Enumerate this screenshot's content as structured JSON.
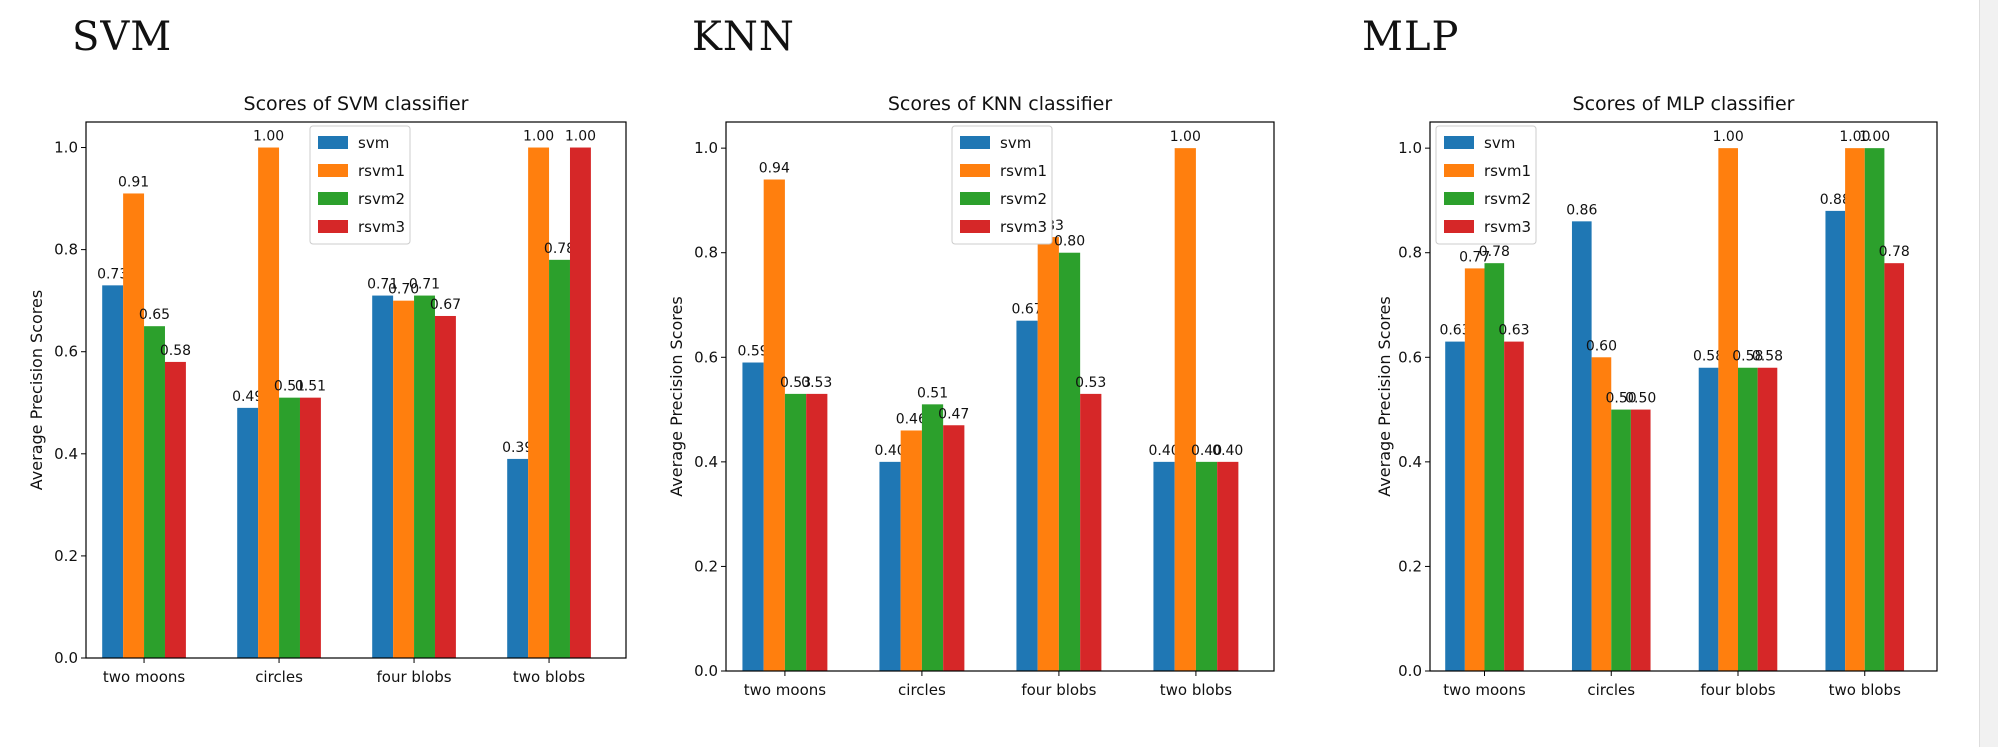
{
  "panels": [
    {
      "heading": "SVM"
    },
    {
      "heading": "KNN"
    },
    {
      "heading": "MLP"
    }
  ],
  "colors": {
    "svm": "#1f77b4",
    "rsvm1": "#ff7f0e",
    "rsvm2": "#2ca02c",
    "rsvm3": "#d62728"
  },
  "chart_data": [
    {
      "type": "bar",
      "title": "Scores of SVM classifier",
      "xlabel": "",
      "ylabel": "Average Precision Scores",
      "ylim": [
        0,
        1.05
      ],
      "yticks": [
        "0.0",
        "0.2",
        "0.4",
        "0.6",
        "0.8",
        "1.0"
      ],
      "categories": [
        "two moons",
        "circles",
        "four blobs",
        "two blobs"
      ],
      "legend": "top-center",
      "grid": false,
      "series": [
        {
          "name": "svm",
          "values": [
            0.73,
            0.49,
            0.71,
            0.39
          ],
          "labels": [
            "0.73",
            "0.49",
            "0.71",
            "0.39"
          ]
        },
        {
          "name": "rsvm1",
          "values": [
            0.91,
            1.0,
            0.7,
            1.0
          ],
          "labels": [
            "0.91",
            "1.00",
            "0.70",
            "1.00"
          ]
        },
        {
          "name": "rsvm2",
          "values": [
            0.65,
            0.51,
            0.71,
            0.78
          ],
          "labels": [
            "0.65",
            "0.51",
            "0.71",
            "0.78"
          ]
        },
        {
          "name": "rsvm3",
          "values": [
            0.58,
            0.51,
            0.67,
            1.0
          ],
          "labels": [
            "0.58",
            "0.51",
            "0.67",
            "1.00"
          ]
        }
      ]
    },
    {
      "type": "bar",
      "title": "Scores of KNN classifier",
      "xlabel": "",
      "ylabel": "Average Precision Scores",
      "ylim": [
        0,
        1.05
      ],
      "yticks": [
        "0.0",
        "0.2",
        "0.4",
        "0.6",
        "0.8",
        "1.0"
      ],
      "categories": [
        "two moons",
        "circles",
        "four blobs",
        "two blobs"
      ],
      "legend": "top-center",
      "grid": false,
      "series": [
        {
          "name": "svm",
          "values": [
            0.59,
            0.4,
            0.67,
            0.4
          ],
          "labels": [
            "0.59",
            "0.40",
            "0.67",
            "0.40"
          ]
        },
        {
          "name": "rsvm1",
          "values": [
            0.94,
            0.46,
            0.83,
            1.0
          ],
          "labels": [
            "0.94",
            "0.46",
            "0.83",
            "1.00"
          ]
        },
        {
          "name": "rsvm2",
          "values": [
            0.53,
            0.51,
            0.8,
            0.4
          ],
          "labels": [
            "0.53",
            "0.51",
            "0.80",
            "0.40"
          ]
        },
        {
          "name": "rsvm3",
          "values": [
            0.53,
            0.47,
            0.53,
            0.4
          ],
          "labels": [
            "0.53",
            "0.47",
            "0.53",
            "0.40"
          ]
        }
      ]
    },
    {
      "type": "bar",
      "title": "Scores of MLP classifier",
      "xlabel": "",
      "ylabel": "Average Precision Scores",
      "ylim": [
        0,
        1.05
      ],
      "yticks": [
        "0.0",
        "0.2",
        "0.4",
        "0.6",
        "0.8",
        "1.0"
      ],
      "categories": [
        "two moons",
        "circles",
        "four blobs",
        "two blobs"
      ],
      "legend": "top-left",
      "grid": false,
      "series": [
        {
          "name": "svm",
          "values": [
            0.63,
            0.86,
            0.58,
            0.88
          ],
          "labels": [
            "0.63",
            "0.86",
            "0.58",
            "0.88"
          ]
        },
        {
          "name": "rsvm1",
          "values": [
            0.77,
            0.6,
            1.0,
            1.0
          ],
          "labels": [
            "0.77",
            "0.60",
            "1.00",
            "1.00"
          ]
        },
        {
          "name": "rsvm2",
          "values": [
            0.78,
            0.5,
            0.58,
            1.0
          ],
          "labels": [
            "0.78",
            "0.50",
            "0.58",
            "1.00"
          ]
        },
        {
          "name": "rsvm3",
          "values": [
            0.63,
            0.5,
            0.58,
            0.78
          ],
          "labels": [
            "0.63",
            "0.50",
            "0.58",
            "0.78"
          ]
        }
      ]
    }
  ]
}
